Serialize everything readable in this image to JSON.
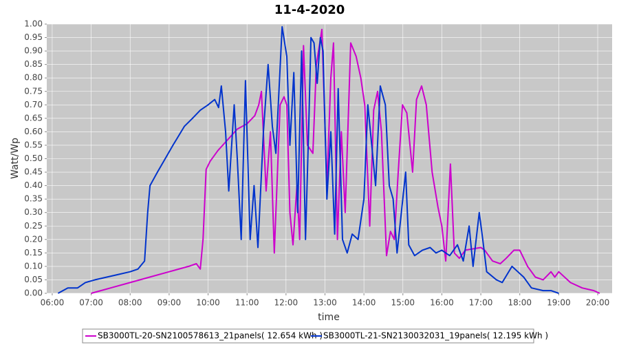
{
  "chart_data": {
    "type": "line",
    "title": "11-4-2020",
    "x_label": "time",
    "y_label": "Watt/Wp",
    "xlim": [
      5.86,
      20.37
    ],
    "ylim": [
      0,
      1.0
    ],
    "grid": true,
    "legend": "bottom",
    "xticks": [
      {
        "value": 6,
        "label": "06:00"
      },
      {
        "value": 7,
        "label": "07:00"
      },
      {
        "value": 8,
        "label": "08:00"
      },
      {
        "value": 9,
        "label": "09:00"
      },
      {
        "value": 10,
        "label": "10:00"
      },
      {
        "value": 11,
        "label": "11:00"
      },
      {
        "value": 12,
        "label": "12:00"
      },
      {
        "value": 13,
        "label": "13:00"
      },
      {
        "value": 14,
        "label": "14:00"
      },
      {
        "value": 15,
        "label": "15:00"
      },
      {
        "value": 16,
        "label": "16:00"
      },
      {
        "value": 17,
        "label": "17:00"
      },
      {
        "value": 18,
        "label": "18:00"
      },
      {
        "value": 19,
        "label": "19:00"
      },
      {
        "value": 20,
        "label": "20:00"
      }
    ],
    "yticks": [
      {
        "value": 0,
        "label": "0.00"
      },
      {
        "value": 0.05,
        "label": "0.05"
      },
      {
        "value": 0.1,
        "label": "0.10"
      },
      {
        "value": 0.15,
        "label": "0.15"
      },
      {
        "value": 0.2,
        "label": "0.20"
      },
      {
        "value": 0.25,
        "label": "0.25"
      },
      {
        "value": 0.3,
        "label": "0.30"
      },
      {
        "value": 0.35,
        "label": "0.35"
      },
      {
        "value": 0.4,
        "label": "0.40"
      },
      {
        "value": 0.45,
        "label": "0.45"
      },
      {
        "value": 0.5,
        "label": "0.50"
      },
      {
        "value": 0.55,
        "label": "0.55"
      },
      {
        "value": 0.6,
        "label": "0.60"
      },
      {
        "value": 0.65,
        "label": "0.65"
      },
      {
        "value": 0.7,
        "label": "0.70"
      },
      {
        "value": 0.75,
        "label": "0.75"
      },
      {
        "value": 0.8,
        "label": "0.80"
      },
      {
        "value": 0.85,
        "label": "0.85"
      },
      {
        "value": 0.9,
        "label": "0.90"
      },
      {
        "value": 0.95,
        "label": "0.95"
      },
      {
        "value": 1.0,
        "label": "1.00"
      }
    ],
    "series": [
      {
        "name": "SB3000TL-20-SN2100578613_21panels( 12.654 kWh )",
        "color": "#cc00cc",
        "x": [
          7.0,
          7.25,
          7.5,
          8.0,
          8.5,
          9.0,
          9.5,
          9.7,
          9.8,
          9.87,
          9.95,
          10.05,
          10.25,
          10.5,
          10.75,
          11.0,
          11.2,
          11.3,
          11.37,
          11.49,
          11.6,
          11.7,
          11.85,
          11.95,
          12.02,
          12.1,
          12.18,
          12.28,
          12.35,
          12.45,
          12.55,
          12.69,
          12.78,
          12.92,
          13.05,
          13.15,
          13.22,
          13.32,
          13.42,
          13.52,
          13.66,
          13.8,
          13.92,
          14.02,
          14.15,
          14.25,
          14.35,
          14.45,
          14.58,
          14.68,
          14.78,
          14.88,
          14.99,
          15.1,
          15.25,
          15.35,
          15.48,
          15.6,
          15.75,
          15.9,
          16.0,
          16.1,
          16.22,
          16.32,
          16.45,
          16.6,
          17.0,
          17.1,
          17.3,
          17.5,
          17.65,
          17.85,
          18.0,
          18.2,
          18.4,
          18.6,
          18.8,
          18.9,
          19.0,
          19.3,
          19.6,
          19.9,
          20.05
        ],
        "values": [
          0.0,
          0.01,
          0.02,
          0.04,
          0.06,
          0.08,
          0.1,
          0.11,
          0.09,
          0.2,
          0.46,
          0.49,
          0.53,
          0.57,
          0.61,
          0.63,
          0.66,
          0.7,
          0.75,
          0.38,
          0.6,
          0.15,
          0.7,
          0.73,
          0.7,
          0.3,
          0.18,
          0.4,
          0.2,
          0.92,
          0.55,
          0.52,
          0.85,
          0.98,
          0.4,
          0.8,
          0.93,
          0.2,
          0.6,
          0.3,
          0.93,
          0.88,
          0.8,
          0.7,
          0.25,
          0.68,
          0.75,
          0.6,
          0.14,
          0.23,
          0.2,
          0.45,
          0.7,
          0.67,
          0.45,
          0.72,
          0.77,
          0.7,
          0.45,
          0.32,
          0.25,
          0.12,
          0.48,
          0.15,
          0.13,
          0.16,
          0.17,
          0.16,
          0.12,
          0.11,
          0.13,
          0.16,
          0.16,
          0.1,
          0.06,
          0.05,
          0.08,
          0.06,
          0.08,
          0.04,
          0.02,
          0.01,
          0.0
        ]
      },
      {
        "name": "SB3000TL-21-SN2130032031_19panels( 12.195 kWh )",
        "color": "#0033cc",
        "x": [
          6.15,
          6.4,
          6.65,
          6.85,
          7.1,
          7.4,
          7.7,
          8.0,
          8.2,
          8.37,
          8.45,
          8.51,
          8.7,
          8.9,
          9.1,
          9.39,
          9.6,
          9.8,
          10.0,
          10.17,
          10.27,
          10.34,
          10.45,
          10.53,
          10.67,
          10.75,
          10.85,
          10.96,
          11.08,
          11.18,
          11.28,
          11.42,
          11.54,
          11.65,
          11.74,
          11.9,
          12.02,
          12.1,
          12.2,
          12.3,
          12.4,
          12.5,
          12.58,
          12.64,
          12.72,
          12.8,
          12.88,
          12.95,
          13.05,
          13.15,
          13.25,
          13.34,
          13.45,
          13.57,
          13.7,
          13.85,
          14.0,
          14.1,
          14.2,
          14.3,
          14.42,
          14.55,
          14.65,
          14.75,
          14.85,
          15.07,
          15.15,
          15.3,
          15.5,
          15.7,
          15.85,
          16.0,
          16.2,
          16.4,
          16.55,
          16.7,
          16.8,
          16.96,
          17.05,
          17.15,
          17.4,
          17.55,
          17.8,
          17.95,
          18.1,
          18.3,
          18.6,
          18.8,
          19.0
        ],
        "values": [
          0.0,
          0.02,
          0.02,
          0.04,
          0.05,
          0.06,
          0.07,
          0.08,
          0.09,
          0.12,
          0.3,
          0.4,
          0.45,
          0.5,
          0.55,
          0.62,
          0.65,
          0.68,
          0.7,
          0.72,
          0.69,
          0.77,
          0.6,
          0.38,
          0.7,
          0.5,
          0.2,
          0.79,
          0.2,
          0.4,
          0.17,
          0.6,
          0.85,
          0.62,
          0.52,
          0.99,
          0.88,
          0.55,
          0.82,
          0.3,
          0.9,
          0.2,
          0.6,
          0.95,
          0.93,
          0.78,
          0.95,
          0.9,
          0.35,
          0.6,
          0.22,
          0.76,
          0.2,
          0.15,
          0.22,
          0.2,
          0.35,
          0.7,
          0.55,
          0.4,
          0.77,
          0.7,
          0.4,
          0.35,
          0.15,
          0.45,
          0.18,
          0.14,
          0.16,
          0.17,
          0.15,
          0.16,
          0.14,
          0.18,
          0.12,
          0.25,
          0.1,
          0.3,
          0.2,
          0.08,
          0.05,
          0.04,
          0.1,
          0.08,
          0.06,
          0.02,
          0.01,
          0.01,
          0.0
        ]
      }
    ]
  }
}
